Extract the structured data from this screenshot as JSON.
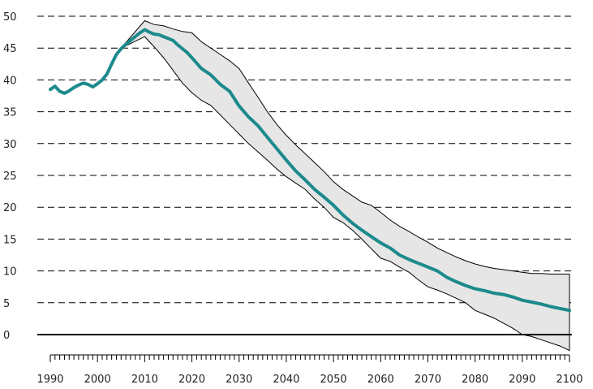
{
  "chart_data": {
    "type": "area",
    "title": "",
    "xlabel": "",
    "ylabel": "",
    "xlim": [
      1990,
      2100
    ],
    "ylim": [
      -3,
      50
    ],
    "x_ticks": [
      1990,
      2000,
      2010,
      2020,
      2030,
      2040,
      2050,
      2060,
      2070,
      2080,
      2090,
      2100
    ],
    "y_ticks": [
      0,
      5,
      10,
      15,
      20,
      25,
      30,
      35,
      40,
      45,
      50
    ],
    "grid": true,
    "legend": "none",
    "colors": {
      "central": "#1c8a8c",
      "band": "#e6e6e6",
      "outline": "#000000"
    },
    "series": [
      {
        "role": "central",
        "x": [
          1990,
          1991,
          1992,
          1993,
          1994,
          1995,
          1996,
          1997,
          1998,
          1999,
          2000,
          2001,
          2002,
          2003,
          2004,
          2005,
          2006,
          2007,
          2008,
          2009,
          2010,
          2011,
          2012,
          2013,
          2014,
          2015,
          2016,
          2017,
          2018,
          2019,
          2020,
          2022,
          2024,
          2026,
          2028,
          2030,
          2032,
          2034,
          2036,
          2038,
          2040,
          2042,
          2044,
          2046,
          2048,
          2050,
          2052,
          2054,
          2056,
          2058,
          2060,
          2062,
          2064,
          2066,
          2068,
          2070,
          2072,
          2074,
          2076,
          2078,
          2080,
          2082,
          2084,
          2086,
          2088,
          2090,
          2092,
          2094,
          2096,
          2098,
          2100
        ],
        "y": [
          38.5,
          39.0,
          38.2,
          37.9,
          38.3,
          38.8,
          39.2,
          39.5,
          39.3,
          38.9,
          39.4,
          40.0,
          40.9,
          42.5,
          44.0,
          44.9,
          45.6,
          46.2,
          46.8,
          47.4,
          47.9,
          47.5,
          47.2,
          47.1,
          46.8,
          46.5,
          46.2,
          45.5,
          44.9,
          44.3,
          43.5,
          41.8,
          40.8,
          39.3,
          38.2,
          35.9,
          34.2,
          32.8,
          31.0,
          29.2,
          27.4,
          25.7,
          24.3,
          22.8,
          21.6,
          20.3,
          18.8,
          17.5,
          16.4,
          15.4,
          14.4,
          13.6,
          12.5,
          11.8,
          11.2,
          10.6,
          10.0,
          9.0,
          8.3,
          7.7,
          7.2,
          6.9,
          6.5,
          6.3,
          5.9,
          5.4,
          5.1,
          4.8,
          4.4,
          4.1,
          3.8
        ]
      },
      {
        "role": "upper-bound",
        "x": [
          2005,
          2010,
          2012,
          2014,
          2016,
          2018,
          2020,
          2022,
          2024,
          2026,
          2028,
          2030,
          2032,
          2034,
          2036,
          2038,
          2040,
          2042,
          2044,
          2046,
          2048,
          2050,
          2052,
          2054,
          2056,
          2058,
          2060,
          2062,
          2064,
          2066,
          2068,
          2070,
          2072,
          2074,
          2076,
          2078,
          2080,
          2082,
          2084,
          2086,
          2088,
          2090,
          2092,
          2094,
          2096,
          2098,
          2100
        ],
        "y": [
          45.0,
          49.3,
          48.7,
          48.5,
          48.0,
          47.6,
          47.4,
          46.0,
          45.0,
          44.0,
          43.0,
          41.8,
          39.5,
          37.3,
          35.0,
          33.0,
          31.3,
          29.8,
          28.4,
          27.0,
          25.6,
          24.0,
          22.8,
          21.8,
          20.8,
          20.3,
          19.2,
          18.0,
          17.0,
          16.2,
          15.3,
          14.5,
          13.6,
          12.9,
          12.2,
          11.6,
          11.1,
          10.7,
          10.4,
          10.2,
          10.0,
          9.8,
          9.6,
          9.6,
          9.5,
          9.5,
          9.5
        ]
      },
      {
        "role": "lower-bound",
        "x": [
          2005,
          2010,
          2012,
          2014,
          2016,
          2018,
          2020,
          2022,
          2024,
          2026,
          2028,
          2030,
          2032,
          2034,
          2036,
          2038,
          2040,
          2042,
          2044,
          2046,
          2048,
          2050,
          2052,
          2054,
          2056,
          2058,
          2060,
          2062,
          2064,
          2066,
          2068,
          2070,
          2072,
          2074,
          2076,
          2078,
          2080,
          2082,
          2084,
          2086,
          2088,
          2090,
          2092,
          2094,
          2096,
          2098,
          2100
        ],
        "y": [
          45.0,
          46.8,
          45.2,
          43.5,
          41.5,
          39.5,
          38.0,
          36.8,
          36.0,
          34.5,
          33.0,
          31.5,
          30.0,
          28.7,
          27.4,
          26.0,
          24.8,
          23.8,
          22.8,
          21.3,
          20.0,
          18.4,
          17.6,
          16.4,
          15.0,
          13.5,
          12.0,
          11.5,
          10.6,
          9.8,
          8.6,
          7.5,
          7.0,
          6.4,
          5.7,
          5.0,
          3.8,
          3.2,
          2.6,
          1.8,
          1.0,
          0.0,
          -0.3,
          -0.8,
          -1.3,
          -1.8,
          -2.5
        ]
      }
    ]
  }
}
